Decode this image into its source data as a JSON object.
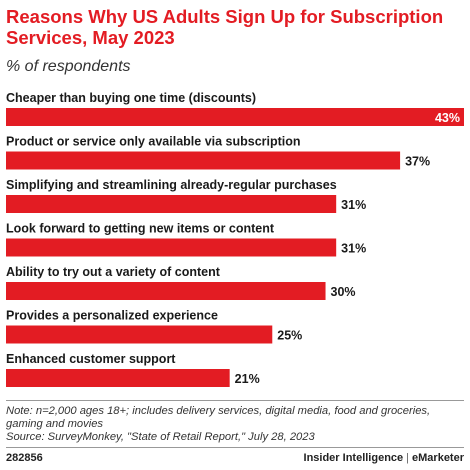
{
  "header": {
    "title": "Reasons Why US Adults Sign Up for Subscription Services, May 2023",
    "subtitle": "% of respondents"
  },
  "chart_data": {
    "type": "bar",
    "orientation": "horizontal",
    "categories": [
      "Cheaper than buying one time (discounts)",
      "Product or service only available via subscription",
      "Simplifying and streamlining already-regular purchases",
      "Look forward to getting new items or content",
      "Ability to try out a variety of content",
      "Provides a personalized experience",
      "Enhanced customer support"
    ],
    "values": [
      43,
      37,
      31,
      31,
      30,
      25,
      21
    ],
    "value_labels": [
      "43%",
      "37%",
      "31%",
      "31%",
      "30%",
      "25%",
      "21%"
    ],
    "bar_color": "#e31c23",
    "xlim": [
      0,
      43
    ]
  },
  "footer": {
    "note": "Note: n=2,000 ages 18+; includes delivery services, digital media, food and groceries, gaming and movies",
    "source": "Source: SurveyMonkey, \"State of Retail Report,\" July 28, 2023",
    "chart_id": "282856",
    "brand_left": "Insider Intelligence",
    "brand_sep": "|",
    "brand_right": "eMarketer"
  }
}
